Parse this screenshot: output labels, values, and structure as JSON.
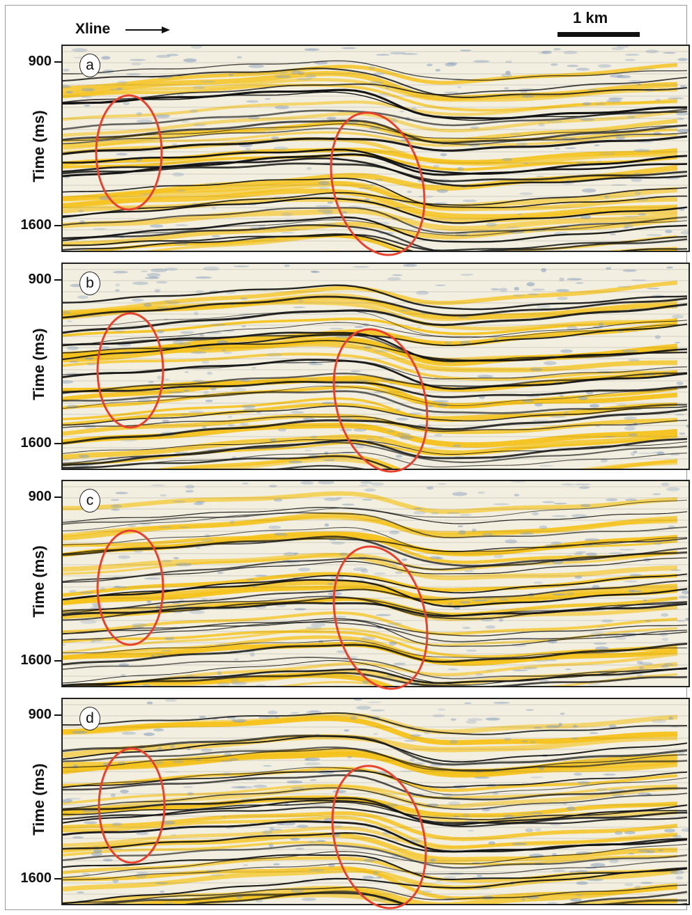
{
  "header": {
    "xline_label": "Xline",
    "scale_label": "1 km"
  },
  "axis": {
    "ylabel": "Time (ms)",
    "ticks": [
      "900",
      "1600"
    ]
  },
  "panels": [
    {
      "label": "a"
    },
    {
      "label": "b"
    },
    {
      "label": "c"
    },
    {
      "label": "d"
    }
  ],
  "colors": {
    "positive_amplitude": "#f5c21a",
    "negative_amplitude": "#111111",
    "background": "#f2efe0",
    "noise": "#8aa0be",
    "highlight_ellipse": "#e8412d"
  },
  "icons": {
    "xline_arrow": "right-arrow-icon"
  }
}
